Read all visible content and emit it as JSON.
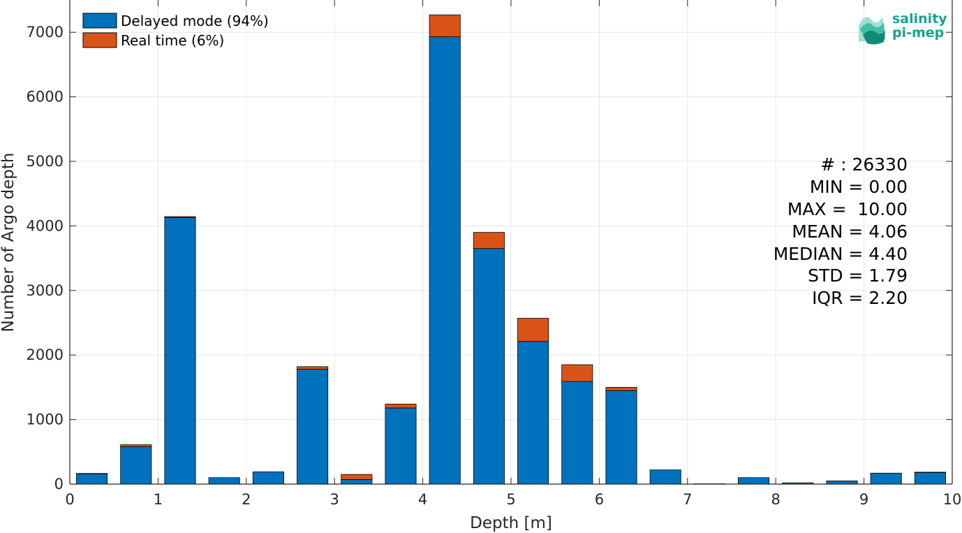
{
  "chart_data": {
    "type": "bar",
    "stacked": true,
    "title": "",
    "xlabel": "Depth [m]",
    "ylabel": "Number of Argo depth",
    "xlim": [
      0,
      10
    ],
    "ylim": [
      0,
      7500
    ],
    "xticks": [
      "0",
      "1",
      "2",
      "3",
      "4",
      "5",
      "6",
      "7",
      "8",
      "9",
      "10"
    ],
    "yticks": [
      "0",
      "1000",
      "2000",
      "3000",
      "4000",
      "5000",
      "6000",
      "7000"
    ],
    "grid": true,
    "legend_position": "top-left",
    "bin_centers": [
      0.25,
      0.75,
      1.25,
      1.75,
      2.25,
      2.75,
      3.25,
      3.75,
      4.25,
      4.75,
      5.25,
      5.75,
      6.25,
      6.75,
      7.25,
      7.75,
      8.25,
      8.75,
      9.25,
      9.75
    ],
    "series": [
      {
        "name": "Delayed mode (94%)",
        "color": "#0072bd",
        "values": [
          160,
          580,
          4130,
          100,
          190,
          1780,
          70,
          1180,
          6930,
          3650,
          2210,
          1590,
          1450,
          220,
          5,
          100,
          20,
          50,
          170,
          180
        ]
      },
      {
        "name": "Real time (6%)",
        "color": "#d95319",
        "values": [
          5,
          30,
          15,
          0,
          0,
          40,
          80,
          60,
          340,
          250,
          360,
          260,
          50,
          0,
          0,
          0,
          0,
          0,
          0,
          5
        ]
      }
    ],
    "stats": [
      "# : 26330",
      "MIN = 0.00",
      "MAX =  10.00",
      "MEAN = 4.06",
      "MEDIAN = 4.40",
      "STD = 1.79",
      "IQR = 2.20"
    ]
  },
  "logo": {
    "line1": "salinity",
    "line2": "pi-mep"
  }
}
